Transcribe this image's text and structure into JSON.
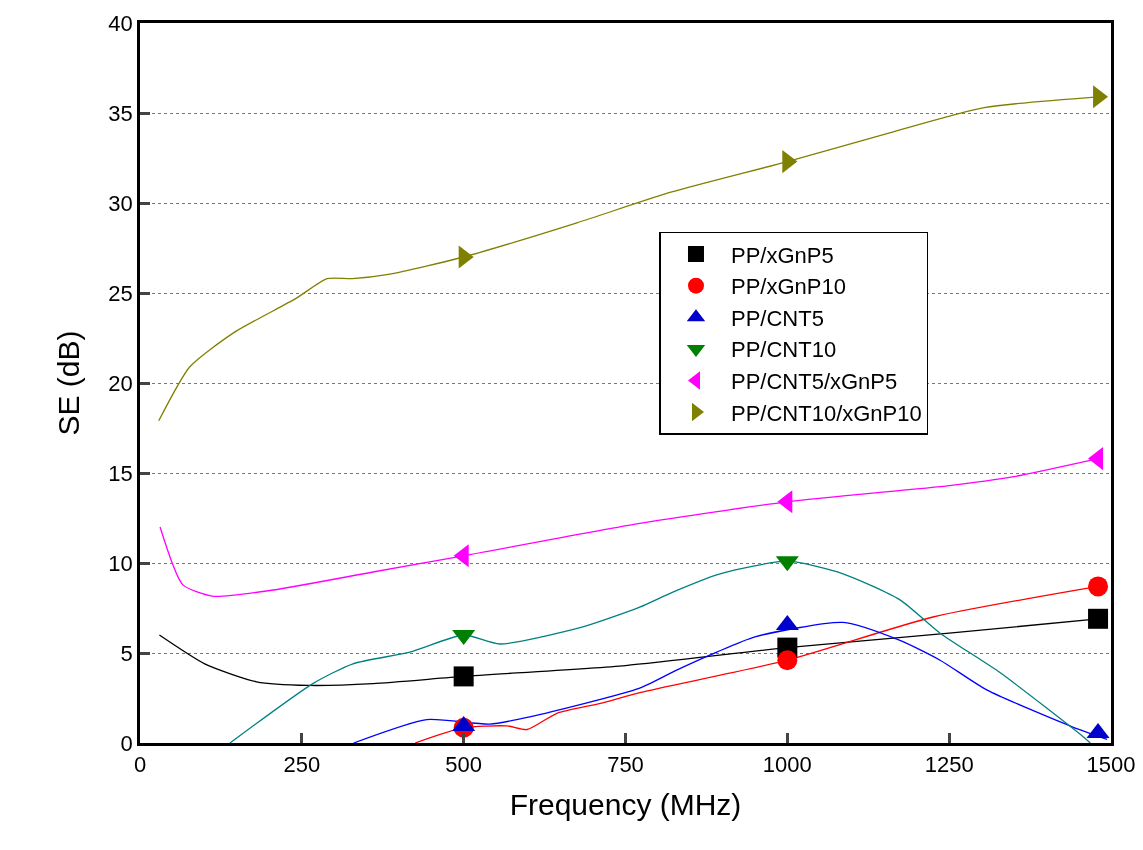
{
  "chart_data": {
    "type": "line",
    "xlabel": "Frequency (MHz)",
    "ylabel": "SE (dB)",
    "xlim": [
      0,
      1500
    ],
    "xticks": [
      0,
      250,
      500,
      750,
      1000,
      1250,
      1500
    ],
    "ylim": [
      0,
      40
    ],
    "yticks": [
      0,
      5,
      10,
      15,
      20,
      25,
      30,
      35,
      40
    ],
    "grid": "y",
    "legend": "right",
    "series": [
      {
        "color": "#000000",
        "x": [
          30,
          100,
          180,
          260,
          360,
          500,
          750,
          1000,
          1250,
          1480
        ],
        "values": [
          6.0,
          4.4,
          3.4,
          3.2,
          3.3,
          3.7,
          4.3,
          5.3,
          6.1,
          6.9
        ]
      },
      {
        "color": "#ff0000",
        "x": [
          425,
          500,
          567,
          598,
          644,
          711,
          772,
          1000,
          1225,
          1480
        ],
        "values": [
          0,
          0.85,
          0.95,
          0.75,
          1.65,
          2.2,
          2.8,
          4.6,
          7.0,
          8.7
        ]
      },
      {
        "color": "#0000ff",
        "x": [
          330,
          443,
          540,
          602,
          772,
          829,
          891,
          950,
          1086,
          1174,
          1236,
          1308,
          1440,
          1494
        ],
        "values": [
          0,
          1.3,
          1.05,
          1.45,
          3.05,
          4.05,
          5.05,
          5.9,
          6.7,
          5.7,
          4.6,
          2.95,
          0.9,
          0.2
        ]
      },
      {
        "color": "#008080",
        "x": [
          139,
          267,
          329,
          417,
          500,
          556,
          684,
          772,
          824,
          896,
          1000,
          1086,
          1174,
          1236,
          1329,
          1457,
          1468
        ],
        "values": [
          0,
          3.3,
          4.4,
          5.05,
          6.0,
          5.5,
          6.45,
          7.55,
          8.4,
          9.4,
          10.1,
          9.4,
          7.95,
          6.1,
          3.9,
          0.35,
          0
        ]
      },
      {
        "color": "#ff00ff",
        "x": [
          31,
          66,
          113,
          206,
          360,
          500,
          772,
          1000,
          1250,
          1350,
          1480
        ],
        "values": [
          12.0,
          8.8,
          8.15,
          8.5,
          9.5,
          10.4,
          12.2,
          13.4,
          14.3,
          14.8,
          15.8
        ]
      },
      {
        "color": "#808000",
        "x": [
          29,
          77,
          145,
          241,
          289,
          328,
          386,
          500,
          675,
          820,
          1000,
          1158,
          1304,
          1480
        ],
        "values": [
          17.9,
          20.9,
          22.8,
          24.7,
          25.8,
          25.8,
          26.05,
          27.0,
          28.9,
          30.6,
          32.3,
          33.9,
          35.3,
          35.9
        ]
      },
      {
        "type": "scatter",
        "name": "PP/xGnP5",
        "color": "#000000",
        "marker": "square",
        "x": [
          500,
          1000,
          1480
        ],
        "values": [
          3.7,
          5.3,
          6.9
        ]
      },
      {
        "type": "scatter",
        "name": "PP/xGnP10",
        "color": "#ff0000",
        "marker": "circle",
        "x": [
          500,
          1000,
          1480
        ],
        "values": [
          0.85,
          4.6,
          8.7
        ]
      },
      {
        "type": "scatter",
        "name": "PP/CNT5",
        "color": "#0000cc",
        "marker": "triangle",
        "x": [
          500,
          1000,
          1480
        ],
        "values": [
          0.95,
          6.55,
          0.55
        ]
      },
      {
        "type": "scatter",
        "name": "PP/CNT10",
        "color": "#008000",
        "marker": "triangle",
        "x": [
          500,
          1000
        ],
        "values": [
          6.0,
          10.1
        ]
      },
      {
        "type": "scatter",
        "name": "PP/CNT5/xGnP5",
        "color": "#ff00ff",
        "marker": "triangle",
        "x": [
          500,
          1000,
          1480
        ],
        "values": [
          10.4,
          13.4,
          15.8
        ]
      },
      {
        "type": "scatter",
        "name": "PP/CNT10/xGnP10",
        "color": "#808000",
        "marker": "triangle",
        "x": [
          500,
          1000,
          1480
        ],
        "values": [
          27.0,
          32.3,
          35.9
        ]
      }
    ]
  }
}
